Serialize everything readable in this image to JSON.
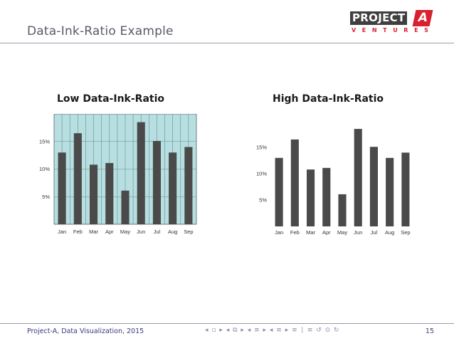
{
  "slide": {
    "title": "Data-Ink-Ratio Example",
    "logo": {
      "word": "PROJECT",
      "letter": "A",
      "sub": "VENTURES"
    },
    "footer": {
      "text": "Project-A, Data Visualization, 2015",
      "page": "15",
      "nav": "◂ ▫ ▸ ◂ ⧉ ▸ ◂ ≡ ▸ ◂ ≡ ▸ ≡ ∣ ≡ ↺ ⊙ ↻"
    }
  },
  "chart_data": [
    {
      "type": "bar",
      "title": "Low Data-Ink-Ratio",
      "categories": [
        "Jan",
        "Feb",
        "Mar",
        "Apr",
        "May",
        "Jun",
        "Jul",
        "Aug",
        "Sep"
      ],
      "values": [
        13,
        16.5,
        10.8,
        11.1,
        6.1,
        18.5,
        15.1,
        13,
        14
      ],
      "ylim": [
        0,
        20
      ],
      "yticks": [
        5,
        10,
        15
      ],
      "ytick_labels": [
        "5%",
        "10%",
        "15%"
      ],
      "grid": true,
      "background": "#b7dfe1",
      "bar_color": "#4a4a4a"
    },
    {
      "type": "bar",
      "title": "High Data-Ink-Ratio",
      "categories": [
        "Jan",
        "Feb",
        "Mar",
        "Apr",
        "May",
        "Jun",
        "Jul",
        "Aug",
        "Sep"
      ],
      "values": [
        13,
        16.5,
        10.8,
        11.1,
        6.1,
        18.5,
        15.1,
        13,
        14
      ],
      "ylim": [
        0,
        20
      ],
      "yticks": [
        5,
        10,
        15
      ],
      "ytick_labels": [
        "5%",
        "10%",
        "15%"
      ],
      "grid": false,
      "background": "#ffffff",
      "bar_color": "#4a4a4a"
    }
  ]
}
